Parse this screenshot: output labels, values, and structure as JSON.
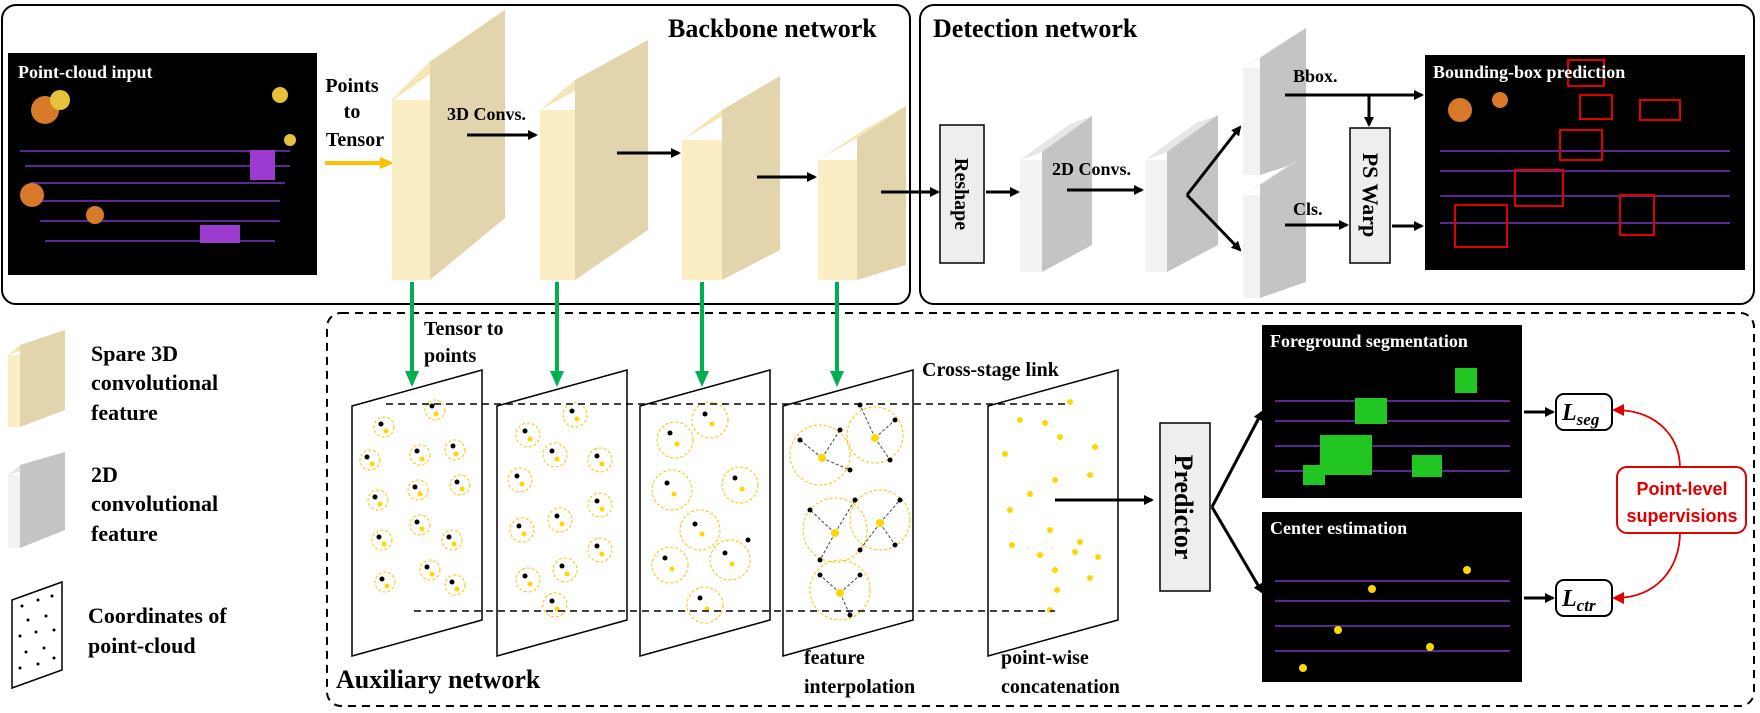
{
  "sections": {
    "backbone": "Backbone network",
    "detection": "Detection network",
    "auxiliary": "Auxiliary network"
  },
  "images": {
    "input": "Point-cloud input",
    "bbox": "Bounding-box prediction",
    "seg": "Foreground segmentation",
    "ctr": "Center estimation"
  },
  "labels": {
    "points_to_tensor_1": "Points",
    "points_to_tensor_2": "to",
    "points_to_tensor_3": "Tensor",
    "conv3d": "3D Convs.",
    "reshape": "Reshape",
    "conv2d": "2D Convs.",
    "bbox_branch": "Bbox.",
    "cls_branch": "Cls.",
    "ps_warp": "PS Warp",
    "tensor_to_points_1": "Tensor to",
    "tensor_to_points_2": "points",
    "cross_stage": "Cross-stage link",
    "feat_interp_1": "feature",
    "feat_interp_2": "interpolation",
    "concat_1": "point-wise",
    "concat_2": "concatenation",
    "predictor": "Predictor",
    "loss_seg_main": "L",
    "loss_seg_sub": "seg",
    "loss_ctr_main": "L",
    "loss_ctr_sub": "ctr",
    "supervision_1": "Point-level",
    "supervision_2": "supervisions"
  },
  "legend": {
    "sparse3d": [
      "Spare 3D",
      "convolutional",
      "feature"
    ],
    "conv2d": [
      "2D",
      "convolutional",
      "feature"
    ],
    "coords": [
      "Coordinates of",
      "point-cloud"
    ]
  },
  "colors": {
    "feature3d_front": "#fbedc4",
    "feature3d_side": "#e2d5ad",
    "feature3d_top": "#f5e6b8",
    "feature2d_front": "#f2f2f2",
    "feature2d_side": "#c4c4c4",
    "arrow_orange": "#ffc000",
    "arrow_green": "#00b050",
    "point_yellow": "#ffd700",
    "supervision_red": "#e00000"
  }
}
